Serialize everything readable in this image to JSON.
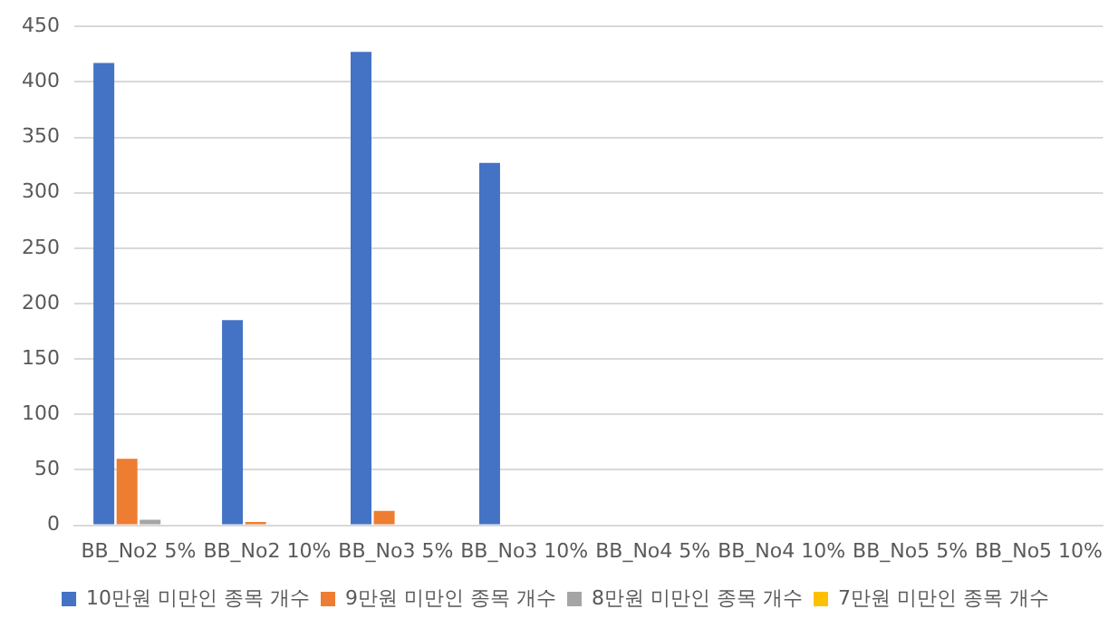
{
  "chart_data": {
    "type": "bar",
    "categories": [
      "BB_No2 5%",
      "BB_No2 10%",
      "BB_No3 5%",
      "BB_No3 10%",
      "BB_No4 5%",
      "BB_No4 10%",
      "BB_No5 5%",
      "BB_No5 10%"
    ],
    "series": [
      {
        "name": "10만원 미만인 종목 개수",
        "color": "#4472c4",
        "values": [
          417,
          185,
          427,
          327,
          0,
          0,
          0,
          0
        ]
      },
      {
        "name": "9만원 미만인 종목 개수",
        "color": "#ed7d31",
        "values": [
          60,
          3,
          13,
          0,
          0,
          0,
          0,
          0
        ]
      },
      {
        "name": "8만원 미만인 종목 개수",
        "color": "#a5a5a5",
        "values": [
          5,
          0,
          0,
          0,
          0,
          0,
          0,
          0
        ]
      },
      {
        "name": "7만원 미만인 종목 개수",
        "color": "#ffc000",
        "values": [
          0,
          0,
          0,
          0,
          0,
          0,
          0,
          0
        ]
      }
    ],
    "ylim": [
      0,
      450
    ],
    "yticks": [
      0,
      50,
      100,
      150,
      200,
      250,
      300,
      350,
      400,
      450
    ],
    "grid": "y",
    "legend": "bottom"
  }
}
